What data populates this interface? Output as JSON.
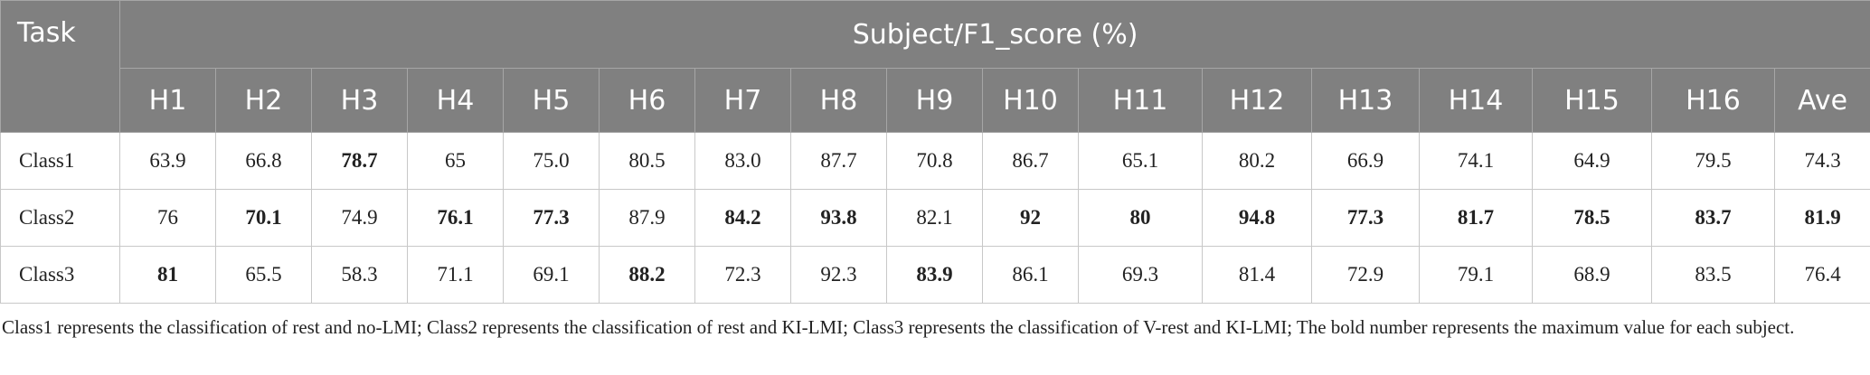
{
  "table": {
    "task_header": "Task",
    "group_header": "Subject/F1_score (%)",
    "columns": [
      "H1",
      "H2",
      "H3",
      "H4",
      "H5",
      "H6",
      "H7",
      "H8",
      "H9",
      "H10",
      "H11",
      "H12",
      "H13",
      "H14",
      "H15",
      "H16",
      "Ave"
    ],
    "rows": [
      {
        "label": "Class1",
        "values": [
          "63.9",
          "66.8",
          "78.7",
          "65",
          "75.0",
          "80.5",
          "83.0",
          "87.7",
          "70.8",
          "86.7",
          "65.1",
          "80.2",
          "66.9",
          "74.1",
          "64.9",
          "79.5",
          "74.3"
        ],
        "bold": [
          false,
          false,
          true,
          false,
          false,
          false,
          false,
          false,
          false,
          false,
          false,
          false,
          false,
          false,
          false,
          false,
          false
        ]
      },
      {
        "label": "Class2",
        "values": [
          "76",
          "70.1",
          "74.9",
          "76.1",
          "77.3",
          "87.9",
          "84.2",
          "93.8",
          "82.1",
          "92",
          "80",
          "94.8",
          "77.3",
          "81.7",
          "78.5",
          "83.7",
          "81.9"
        ],
        "bold": [
          false,
          true,
          false,
          true,
          true,
          false,
          true,
          true,
          false,
          true,
          true,
          true,
          true,
          true,
          true,
          true,
          true
        ]
      },
      {
        "label": "Class3",
        "values": [
          "81",
          "65.5",
          "58.3",
          "71.1",
          "69.1",
          "88.2",
          "72.3",
          "92.3",
          "83.9",
          "86.1",
          "69.3",
          "81.4",
          "72.9",
          "79.1",
          "68.9",
          "83.5",
          "76.4"
        ],
        "bold": [
          true,
          false,
          false,
          false,
          false,
          true,
          false,
          false,
          true,
          false,
          false,
          false,
          false,
          false,
          false,
          false,
          false
        ]
      }
    ]
  },
  "note": "Class1 represents the classification of rest and no-LMI; Class2 represents the classification of rest and KI-LMI; Class3 represents the classification of V-rest and KI-LMI; The bold number represents the maximum value for each subject."
}
